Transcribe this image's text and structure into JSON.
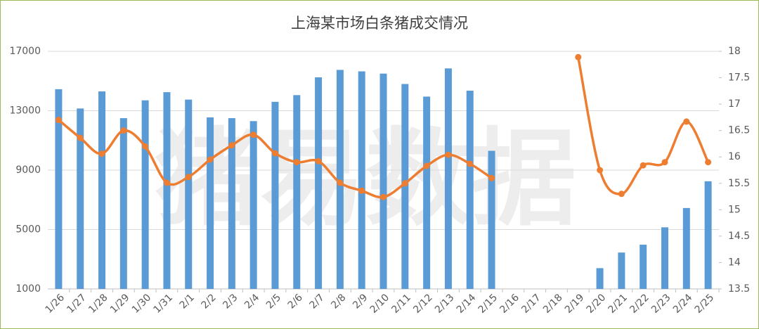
{
  "chart_data": {
    "type": "bar_line",
    "title": "上海某市场白条猪成交情况",
    "watermark": "猪易数据",
    "categories": [
      "1/26",
      "1/27",
      "1/28",
      "1/29",
      "1/30",
      "1/31",
      "2/1",
      "2/2",
      "2/3",
      "2/4",
      "2/5",
      "2/6",
      "2/7",
      "2/8",
      "2/9",
      "2/10",
      "2/11",
      "2/12",
      "2/13",
      "2/14",
      "2/15",
      "2/16",
      "2/17",
      "2/18",
      "2/19",
      "2/20",
      "2/21",
      "2/22",
      "2/23",
      "2/24",
      "2/25"
    ],
    "series": [
      {
        "type": "bar",
        "color": "#5b9bd5",
        "values": [
          14450,
          13150,
          14300,
          12500,
          13700,
          14250,
          13750,
          12550,
          12500,
          12300,
          13600,
          14050,
          15250,
          15750,
          15650,
          15500,
          14800,
          13950,
          15850,
          14350,
          10300,
          null,
          null,
          null,
          null,
          2400,
          3450,
          3980,
          5150,
          6450,
          8250
        ]
      },
      {
        "type": "line",
        "axis": "y2",
        "color": "#ed7d31",
        "values": [
          16.7,
          16.36,
          16.06,
          16.5,
          16.2,
          15.51,
          15.62,
          15.95,
          16.22,
          16.42,
          16.07,
          15.9,
          15.92,
          15.51,
          15.36,
          15.24,
          15.5,
          15.83,
          16.04,
          15.87,
          15.6,
          null,
          null,
          null,
          17.89,
          15.75,
          15.3,
          15.84,
          15.9,
          16.67,
          15.9
        ]
      }
    ],
    "ylim": [
      1000,
      17000
    ],
    "yticks": [
      1000,
      5000,
      9000,
      13000,
      17000
    ],
    "y2lim": [
      13.5,
      18
    ],
    "y2ticks": [
      13.5,
      14,
      14.5,
      15,
      15.5,
      16,
      16.5,
      17,
      17.5,
      18
    ],
    "grid": true
  }
}
